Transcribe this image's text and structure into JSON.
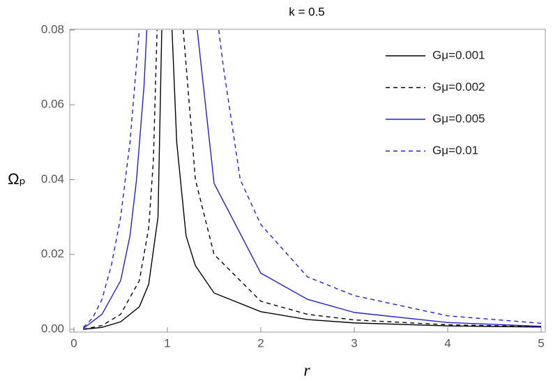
{
  "chart_data": {
    "type": "line",
    "title": "k = 0.5",
    "x_label": "r",
    "y_label": "Ωₚ",
    "xlim": [
      0,
      5
    ],
    "ylim": [
      0,
      0.08
    ],
    "xticks": [
      0,
      1,
      2,
      3,
      4,
      5
    ],
    "yticks": [
      {
        "value": 0,
        "label": "0.00"
      },
      {
        "value": 0.02,
        "label": "0.02"
      },
      {
        "value": 0.04,
        "label": "0.04"
      },
      {
        "value": 0.06,
        "label": "0.06"
      },
      {
        "value": 0.08,
        "label": "0.08"
      }
    ],
    "legend": "top-right",
    "series": [
      {
        "name": "Gμ=0.001",
        "color": "#000000",
        "dashed": false,
        "x": [
          0.1,
          0.3,
          0.5,
          0.7,
          0.8,
          0.9,
          0.94,
          1,
          1.05,
          1.1,
          1.2,
          1.3,
          1.5,
          2,
          2.5,
          3,
          4,
          5
        ],
        "values": [
          0,
          0.0005,
          0.002,
          0.006,
          0.012,
          0.03,
          0.08,
          null,
          0.08,
          0.05,
          0.025,
          0.017,
          0.0097,
          0.0047,
          0.0026,
          0.0017,
          0.0009,
          0.0006
        ]
      },
      {
        "name": "Gμ=0.002",
        "color": "#000000",
        "dashed": true,
        "x": [
          0.1,
          0.3,
          0.5,
          0.7,
          0.8,
          0.85,
          0.89,
          1,
          1.17,
          1.3,
          1.5,
          2,
          2.5,
          3,
          4,
          5
        ],
        "values": [
          0,
          0.001,
          0.004,
          0.013,
          0.027,
          0.045,
          0.08,
          null,
          0.08,
          0.04,
          0.02,
          0.0075,
          0.004,
          0.0025,
          0.0012,
          0.0007
        ]
      },
      {
        "name": "Gμ=0.005",
        "color": "#1f1fd6",
        "dashed": false,
        "x": [
          0.1,
          0.3,
          0.5,
          0.6,
          0.67,
          0.75,
          0.78,
          1,
          1.32,
          1.5,
          2,
          2.5,
          3,
          4,
          5
        ],
        "values": [
          0.0002,
          0.004,
          0.013,
          0.025,
          0.04,
          0.065,
          0.08,
          null,
          0.08,
          0.039,
          0.015,
          0.008,
          0.0045,
          0.0018,
          0.0008
        ]
      },
      {
        "name": "Gμ=0.01",
        "color": "#1f1fd6",
        "dashed": true,
        "x": [
          0.1,
          0.2,
          0.3,
          0.4,
          0.5,
          0.6,
          0.7,
          1,
          1.55,
          1.6,
          1.78,
          2,
          2.5,
          3,
          4,
          5
        ],
        "values": [
          0.0005,
          0.003,
          0.008,
          0.017,
          0.03,
          0.05,
          0.08,
          null,
          0.08,
          0.07,
          0.04,
          0.028,
          0.014,
          0.009,
          0.0036,
          0.0016
        ]
      }
    ]
  }
}
